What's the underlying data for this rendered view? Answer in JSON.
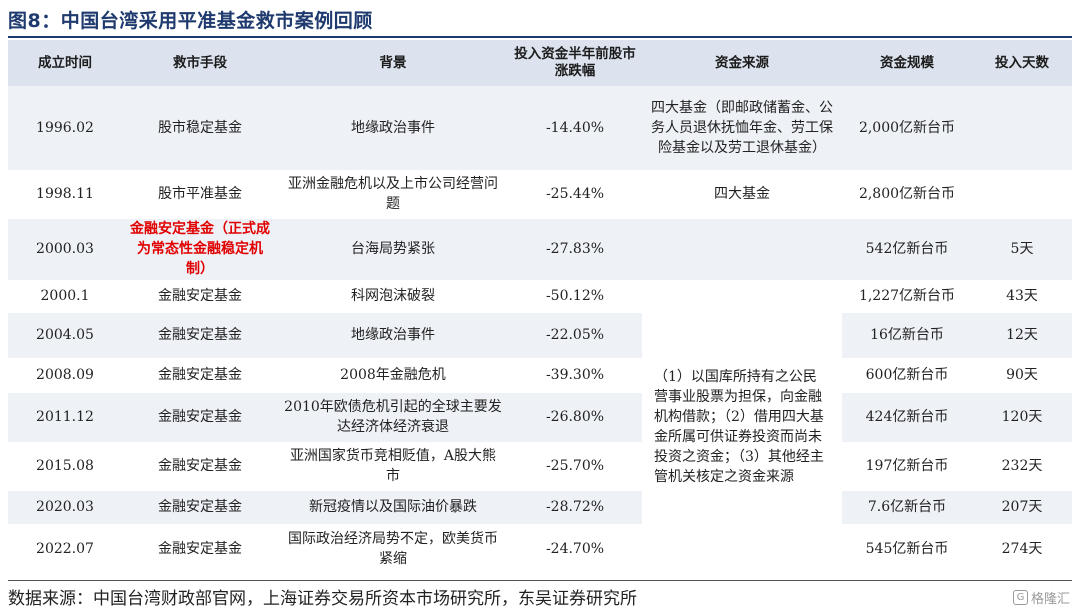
{
  "title": "图8：中国台湾采用平准基金救市案例回顾",
  "headers": [
    "成立时间",
    "救市手段",
    "背景",
    "投入资金半年前股市涨跌幅",
    "资金来源",
    "资金规模",
    "投入天数"
  ],
  "rows": [
    {
      "date": "1996.02",
      "means": "股市稳定基金",
      "background": "地缘政治事件",
      "change": "-14.40%",
      "scale": "2,000亿新台币",
      "days": ""
    },
    {
      "date": "1998.11",
      "means": "股市平准基金",
      "background": "亚洲金融危机以及上市公司经营问题",
      "change": "-25.44%",
      "scale": "2,800亿新台币",
      "days": ""
    },
    {
      "date": "2000.03",
      "means": "金融安定基金（正式成为常态性金融稳定机制）",
      "background": "台海局势紧张",
      "change": "-27.83%",
      "scale": "542亿新台币",
      "days": "5天"
    },
    {
      "date": "2000.1",
      "means": "金融安定基金",
      "background": "科网泡沫破裂",
      "change": "-50.12%",
      "scale": "1,227亿新台币",
      "days": "43天"
    },
    {
      "date": "2004.05",
      "means": "金融安定基金",
      "background": "地缘政治事件",
      "change": "-22.05%",
      "scale": "16亿新台币",
      "days": "12天"
    },
    {
      "date": "2008.09",
      "means": "金融安定基金",
      "background": "2008年金融危机",
      "change": "-39.30%",
      "scale": "600亿新台币",
      "days": "90天"
    },
    {
      "date": "2011.12",
      "means": "金融安定基金",
      "background": "2010年欧债危机引起的全球主要发达经济体经济衰退",
      "change": "-26.80%",
      "scale": "424亿新台币",
      "days": "120天"
    },
    {
      "date": "2015.08",
      "means": "金融安定基金",
      "background": "亚洲国家货币竞相贬值，A股大熊市",
      "change": "-25.70%",
      "scale": "197亿新台币",
      "days": "232天"
    },
    {
      "date": "2020.03",
      "means": "金融安定基金",
      "background": "新冠疫情以及国际油价暴跌",
      "change": "-28.72%",
      "scale": "7.6亿新台币",
      "days": "207天"
    },
    {
      "date": "2022.07",
      "means": "金融安定基金",
      "background": "国际政治经济局势不定，欧美货币紧缩",
      "change": "-24.70%",
      "scale": "545亿新台币",
      "days": "274天"
    }
  ],
  "source_1996": "四大基金（即邮政储蓄金、公务人员退休抚恤年金、劳工保险基金以及劳工退休基金）",
  "source_1998": "四大基金",
  "source_2000_on": "（1）以国库所持有之公民营事业股票为担保，向金融机构借款；（2）借用四大基金所属可供证券投资而尚未投资之资金；（3）其他经主管机关核定之资金来源",
  "footer_source": "数据来源：中国台湾财政部官网，上海证券交易所资本市场研究所，东吴证券研究所",
  "watermark": "格隆汇"
}
